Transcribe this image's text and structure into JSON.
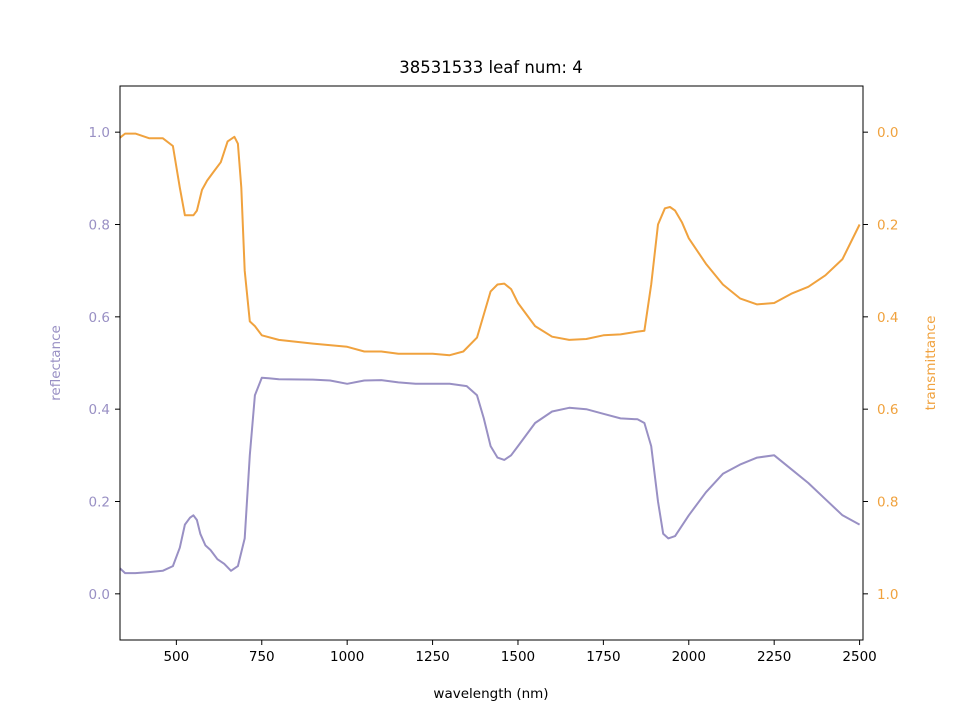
{
  "chart_data": {
    "type": "line",
    "title": "38531533 leaf num: 4",
    "xlabel": "wavelength (nm)",
    "ylabel_left": "reflectance",
    "ylabel_right": "transmittance",
    "xlim": [
      335,
      2510
    ],
    "ylim_left": [
      -0.1,
      1.1
    ],
    "ylim_right": [
      1.1,
      -0.1
    ],
    "x_ticks": [
      500,
      750,
      1000,
      1250,
      1500,
      1750,
      2000,
      2250,
      2500
    ],
    "y_left_ticks": [
      "0.0",
      "0.2",
      "0.4",
      "0.6",
      "0.8",
      "1.0"
    ],
    "y_right_ticks": [
      "0.0",
      "0.2",
      "0.4",
      "0.6",
      "0.8",
      "1.0"
    ],
    "grid": false,
    "colors": {
      "reflectance": "#9990c4",
      "transmittance": "#f0a23e",
      "axis": "#000000"
    },
    "series": [
      {
        "name": "reflectance",
        "axis": "left",
        "x": [
          335,
          350,
          380,
          420,
          460,
          490,
          510,
          525,
          540,
          550,
          560,
          570,
          585,
          600,
          620,
          640,
          660,
          680,
          700,
          715,
          730,
          750,
          770,
          800,
          900,
          950,
          1000,
          1050,
          1100,
          1150,
          1200,
          1250,
          1300,
          1350,
          1380,
          1400,
          1420,
          1440,
          1460,
          1480,
          1500,
          1550,
          1600,
          1650,
          1700,
          1750,
          1800,
          1850,
          1870,
          1890,
          1910,
          1925,
          1940,
          1960,
          2000,
          2050,
          2100,
          2150,
          2200,
          2250,
          2300,
          2350,
          2400,
          2450,
          2500
        ],
        "y": [
          0.055,
          0.045,
          0.045,
          0.047,
          0.05,
          0.06,
          0.1,
          0.15,
          0.165,
          0.17,
          0.16,
          0.13,
          0.105,
          0.095,
          0.075,
          0.065,
          0.05,
          0.06,
          0.12,
          0.3,
          0.43,
          0.468,
          0.467,
          0.465,
          0.464,
          0.462,
          0.455,
          0.462,
          0.463,
          0.458,
          0.455,
          0.455,
          0.455,
          0.45,
          0.43,
          0.38,
          0.32,
          0.295,
          0.29,
          0.3,
          0.32,
          0.37,
          0.395,
          0.403,
          0.4,
          0.39,
          0.38,
          0.378,
          0.37,
          0.32,
          0.2,
          0.13,
          0.12,
          0.125,
          0.17,
          0.22,
          0.26,
          0.28,
          0.295,
          0.3,
          0.27,
          0.24,
          0.205,
          0.17,
          0.15
        ]
      },
      {
        "name": "transmittance",
        "axis": "right",
        "x": [
          335,
          350,
          380,
          420,
          460,
          490,
          510,
          525,
          540,
          550,
          560,
          575,
          590,
          610,
          630,
          650,
          670,
          680,
          690,
          700,
          715,
          730,
          750,
          800,
          900,
          1000,
          1050,
          1100,
          1150,
          1200,
          1250,
          1300,
          1340,
          1380,
          1400,
          1420,
          1440,
          1460,
          1480,
          1500,
          1550,
          1600,
          1650,
          1700,
          1750,
          1800,
          1850,
          1870,
          1890,
          1910,
          1930,
          1945,
          1960,
          1980,
          2000,
          2050,
          2100,
          2150,
          2200,
          2250,
          2300,
          2350,
          2400,
          2450,
          2500
        ],
        "y": [
          0.012,
          0.003,
          0.003,
          0.013,
          0.013,
          0.03,
          0.12,
          0.18,
          0.18,
          0.18,
          0.17,
          0.125,
          0.105,
          0.085,
          0.065,
          0.02,
          0.01,
          0.025,
          0.12,
          0.3,
          0.41,
          0.42,
          0.44,
          0.45,
          0.458,
          0.465,
          0.475,
          0.475,
          0.48,
          0.48,
          0.48,
          0.483,
          0.475,
          0.445,
          0.395,
          0.345,
          0.33,
          0.328,
          0.34,
          0.37,
          0.42,
          0.443,
          0.45,
          0.448,
          0.44,
          0.438,
          0.432,
          0.43,
          0.33,
          0.2,
          0.165,
          0.162,
          0.17,
          0.195,
          0.23,
          0.285,
          0.33,
          0.36,
          0.373,
          0.37,
          0.35,
          0.335,
          0.31,
          0.275,
          0.2
        ]
      }
    ]
  }
}
